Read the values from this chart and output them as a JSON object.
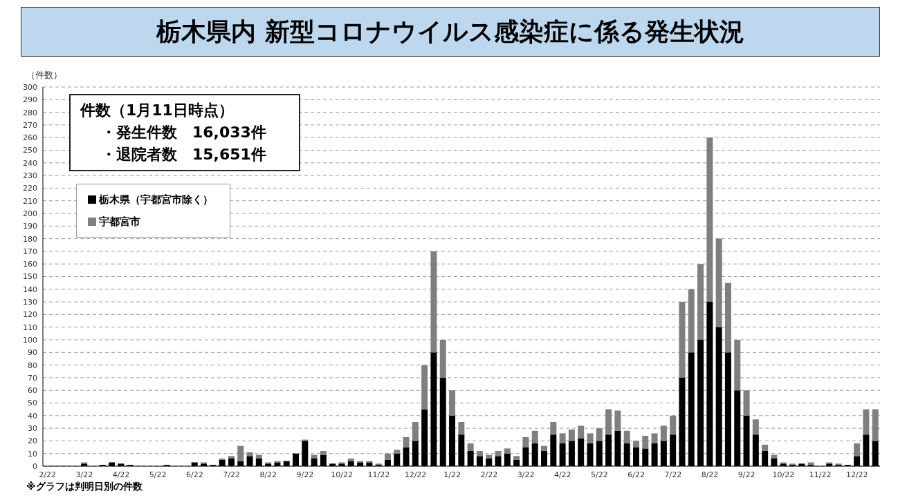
{
  "chart_data": {
    "type": "bar",
    "title": "栃木県内 新型コロナウイルス感染症に係る発生状況",
    "ylabel": "（件数）",
    "categories": [
      "2/22",
      null,
      null,
      null,
      "3/22",
      null,
      null,
      null,
      "4/22",
      null,
      null,
      null,
      "5/22",
      null,
      null,
      null,
      "6/22",
      null,
      null,
      null,
      "7/22",
      null,
      null,
      null,
      "8/22",
      null,
      null,
      null,
      "9/22",
      null,
      null,
      null,
      "10/22",
      null,
      null,
      null,
      "11/22",
      null,
      null,
      null,
      "12/22",
      null,
      null,
      null,
      "1/22",
      null,
      null,
      null,
      "2/22",
      null,
      null,
      null,
      "3/22",
      null,
      null,
      null,
      "4/22",
      null,
      null,
      null,
      "5/22",
      null,
      null,
      null,
      "6/22",
      null,
      null,
      null,
      "7/22",
      null,
      null,
      null,
      "8/22",
      null,
      null,
      null,
      "9/22",
      null,
      null,
      null,
      "10/22",
      null,
      null,
      null,
      "11/22",
      null,
      null,
      null,
      "12/22",
      null,
      null
    ],
    "series": [
      {
        "name": "栃木県（宇都宮市除く）",
        "color": "#000000",
        "values": [
          0,
          0,
          0,
          0,
          2,
          0,
          1,
          3,
          2,
          1,
          0,
          0,
          0,
          1,
          0,
          0,
          3,
          2,
          1,
          5,
          6,
          4,
          8,
          6,
          2,
          3,
          4,
          10,
          20,
          6,
          9,
          2,
          2,
          4,
          3,
          3,
          1,
          5,
          10,
          15,
          20,
          45,
          90,
          70,
          40,
          25,
          12,
          8,
          6,
          8,
          10,
          5,
          15,
          18,
          12,
          25,
          18,
          20,
          22,
          18,
          20,
          25,
          28,
          18,
          15,
          14,
          18,
          20,
          25,
          70,
          90,
          100,
          130,
          110,
          90,
          60,
          40,
          25,
          12,
          6,
          2,
          1,
          2,
          1,
          0,
          2,
          1,
          1,
          8,
          25,
          20
        ]
      },
      {
        "name": "宇都宮市",
        "color": "#7f7f7f",
        "values": [
          0,
          0,
          0,
          0,
          1,
          0,
          0,
          0,
          0,
          0,
          0,
          0,
          0,
          0,
          0,
          0,
          0,
          1,
          0,
          1,
          2,
          12,
          3,
          3,
          1,
          1,
          0,
          0,
          1,
          3,
          3,
          0,
          1,
          2,
          1,
          1,
          1,
          5,
          3,
          8,
          15,
          35,
          80,
          30,
          20,
          10,
          6,
          4,
          3,
          4,
          4,
          3,
          8,
          10,
          4,
          10,
          8,
          9,
          10,
          8,
          10,
          20,
          16,
          10,
          5,
          10,
          8,
          12,
          15,
          60,
          50,
          60,
          130,
          70,
          55,
          40,
          20,
          12,
          5,
          3,
          1,
          1,
          0,
          2,
          0,
          1,
          1,
          0,
          10,
          20,
          25
        ]
      }
    ],
    "stacked": true,
    "ylim": [
      0,
      300
    ],
    "yticks": [
      0,
      10,
      20,
      30,
      40,
      50,
      60,
      70,
      80,
      90,
      100,
      110,
      120,
      130,
      140,
      150,
      160,
      170,
      180,
      190,
      200,
      210,
      220,
      230,
      240,
      250,
      260,
      270,
      280,
      290,
      300
    ],
    "grid": "y",
    "legend": "top left",
    "annotations": [
      "件数（1月11日時点）",
      "・発生件数　16,033件",
      "・退院者数　15,651件",
      "※グラフは判明日別の件数"
    ]
  }
}
